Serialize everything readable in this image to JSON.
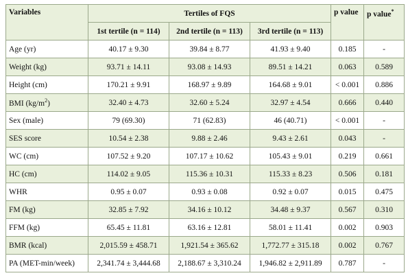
{
  "table": {
    "header": {
      "variables": "Variables",
      "group": "Tertiles of FQS",
      "p_value": "p value",
      "p_value_adj": {
        "text": "p value",
        "sup": "*"
      },
      "tertiles": [
        "1st tertile (n = 114)",
        "2nd tertile (n = 113)",
        "3rd tertile (n = 113)"
      ]
    },
    "rows": [
      {
        "label": "Age (yr)",
        "cells": [
          "40.17 ± 9.30",
          "39.84 ± 8.77",
          "41.93 ± 9.40",
          "0.185",
          "-"
        ]
      },
      {
        "label": "Weight (kg)",
        "cells": [
          "93.71 ± 14.11",
          "93.08 ± 14.93",
          "89.51 ± 14.21",
          "0.063",
          "0.589"
        ]
      },
      {
        "label": "Height (cm)",
        "cells": [
          "170.21 ± 9.91",
          "168.97 ± 9.89",
          "164.68 ± 9.01",
          "< 0.001",
          "0.886"
        ]
      },
      {
        "label": {
          "text": "BMI (kg/m",
          "sup": "2",
          "tail": ")"
        },
        "cells": [
          "32.40 ± 4.73",
          "32.60 ± 5.24",
          "32.97 ± 4.54",
          "0.666",
          "0.440"
        ]
      },
      {
        "label": "Sex (male)",
        "cells": [
          "79 (69.30)",
          "71 (62.83)",
          "46 (40.71)",
          "< 0.001",
          "-"
        ]
      },
      {
        "label": "SES score",
        "cells": [
          "10.54 ± 2.38",
          "9.88 ± 2.46",
          "9.43 ± 2.61",
          "0.043",
          "-"
        ]
      },
      {
        "label": "WC (cm)",
        "cells": [
          "107.52 ± 9.20",
          "107.17 ± 10.62",
          "105.43 ± 9.01",
          "0.219",
          "0.661"
        ]
      },
      {
        "label": "HC (cm)",
        "cells": [
          "114.02 ± 9.05",
          "115.36 ± 10.31",
          "115.33 ± 8.23",
          "0.506",
          "0.181"
        ]
      },
      {
        "label": "WHR",
        "cells": [
          "0.95 ± 0.07",
          "0.93 ± 0.08",
          "0.92 ± 0.07",
          "0.015",
          "0.475"
        ]
      },
      {
        "label": "FM (kg)",
        "cells": [
          "32.85 ± 7.92",
          "34.16 ± 10.12",
          "34.48 ± 9.37",
          "0.567",
          "0.310"
        ]
      },
      {
        "label": "FFM (kg)",
        "cells": [
          "65.45 ± 11.81",
          "63.16 ± 12.81",
          "58.01 ± 11.41",
          "0.002",
          "0.903"
        ]
      },
      {
        "label": "BMR (kcal)",
        "cells": [
          "2,015.59 ± 458.71",
          "1,921.54 ± 365.62",
          "1,772.77 ± 315.18",
          "0.002",
          "0.767"
        ]
      },
      {
        "label": "PA (MET-min/week)",
        "cells": [
          "2,341.74 ± 3,444.68",
          "2,188.67 ± 3,310.24",
          "1,946.82 ± 2,911.89",
          "0.787",
          "-"
        ]
      }
    ]
  }
}
